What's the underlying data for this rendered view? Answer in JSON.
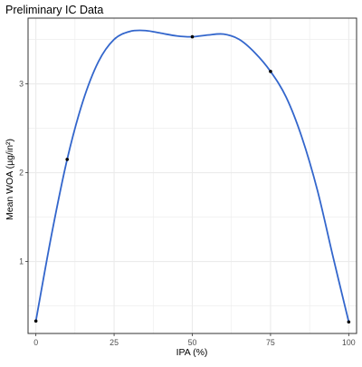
{
  "chart_data": {
    "type": "line",
    "title": "Preliminary IC Data",
    "xlabel": "IPA (%)",
    "ylabel": "Mean WOA (µg/in²)",
    "x": [
      0,
      10,
      50,
      75,
      100
    ],
    "y": [
      0.33,
      2.15,
      3.53,
      3.14,
      0.32
    ],
    "smooth_curve": {
      "x": [
        0,
        5,
        10,
        15,
        20,
        25,
        30,
        35,
        40,
        45,
        50,
        55,
        60,
        65,
        70,
        75,
        80,
        85,
        90,
        95,
        100
      ],
      "y": [
        0.33,
        1.3,
        2.15,
        2.8,
        3.25,
        3.5,
        3.59,
        3.6,
        3.57,
        3.54,
        3.53,
        3.55,
        3.56,
        3.5,
        3.35,
        3.14,
        2.85,
        2.4,
        1.8,
        1.05,
        0.32
      ]
    },
    "xlim": [
      -2.5,
      102.5
    ],
    "ylim": [
      0.19,
      3.74
    ],
    "xticks": [
      0,
      25,
      50,
      75,
      100
    ],
    "xtick_labels": [
      "0",
      "25",
      "50",
      "75",
      "100"
    ],
    "yticks": [
      1,
      2,
      3
    ],
    "ytick_labels": [
      "1",
      "2",
      "3"
    ],
    "grid": true,
    "line_color": "#3366cc",
    "point_color": "#000000",
    "panel_border_color": "#333333",
    "grid_color": "#ebebeb"
  }
}
